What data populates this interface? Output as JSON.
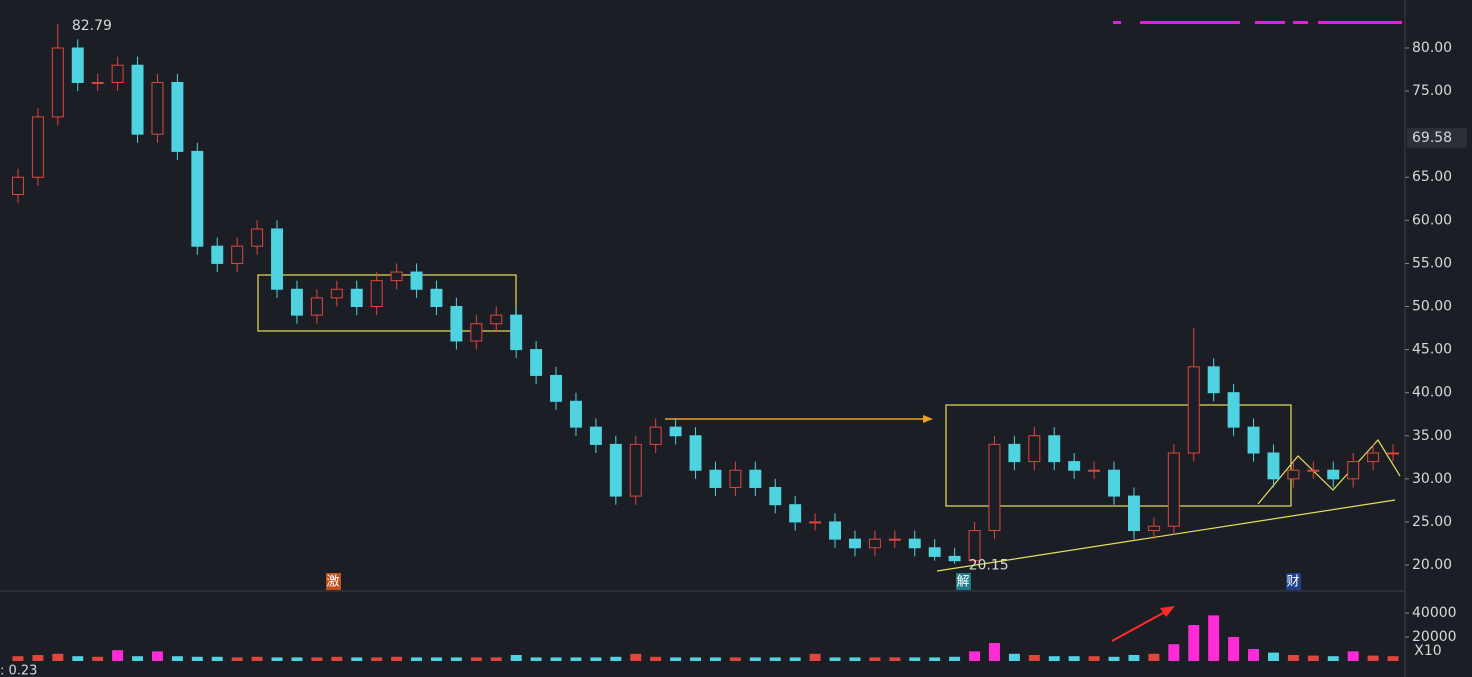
{
  "chart_data": {
    "type": "candlestick",
    "candles": {
      "open": [
        63,
        65,
        72,
        80,
        76,
        76,
        78,
        70,
        76,
        68,
        57,
        55,
        57,
        59,
        52,
        49,
        51,
        52,
        50,
        53,
        54,
        52,
        50,
        46,
        48,
        49,
        45,
        42,
        39,
        36,
        34,
        28,
        34,
        36,
        35,
        31,
        29,
        31,
        29,
        27,
        25,
        25,
        23,
        22,
        23,
        23,
        22,
        21,
        20.5,
        24,
        34,
        32,
        35,
        32,
        31,
        31,
        28,
        24,
        24.5,
        33,
        43,
        40,
        36,
        33,
        30,
        31,
        31,
        30,
        32,
        33
      ],
      "high": [
        66,
        73,
        82.79,
        81,
        77,
        79,
        79,
        77,
        77,
        69,
        58,
        58,
        60,
        60,
        53,
        52,
        53,
        53,
        54,
        55,
        55,
        53,
        51,
        49,
        50,
        50,
        46,
        43,
        40,
        37,
        35,
        35,
        37,
        37,
        36,
        32,
        32,
        32,
        30,
        28,
        26,
        26,
        24,
        24,
        24,
        24,
        23,
        22,
        25,
        35,
        35,
        36,
        36,
        33,
        32,
        32,
        29,
        25.5,
        34,
        47.5,
        44,
        41,
        37,
        34,
        32,
        32,
        32,
        33,
        34,
        34
      ],
      "low": [
        62,
        64,
        71,
        75,
        75,
        75,
        69,
        69,
        67,
        56,
        54,
        54,
        56,
        51,
        48,
        48,
        50,
        49,
        49,
        52,
        51,
        49,
        45,
        45,
        47,
        44,
        41,
        38,
        35,
        33,
        27,
        27,
        33,
        34,
        30,
        28,
        28,
        28,
        26,
        24,
        24,
        22,
        21,
        21,
        22,
        21,
        20.5,
        20.15,
        20.3,
        23,
        31,
        31,
        31,
        30,
        30,
        27,
        23,
        23,
        23.5,
        32,
        39,
        35,
        32,
        29,
        29,
        30,
        29,
        29,
        31,
        32
      ],
      "close": [
        65,
        72,
        80,
        76,
        76,
        78,
        70,
        76,
        68,
        57,
        55,
        57,
        59,
        52,
        49,
        51,
        52,
        50,
        53,
        54,
        52,
        50,
        46,
        48,
        49,
        45,
        42,
        39,
        36,
        34,
        28,
        34,
        36,
        35,
        31,
        29,
        31,
        29,
        27,
        25,
        25,
        23,
        22,
        23,
        23,
        22,
        21,
        20.5,
        24,
        34,
        32,
        35,
        32,
        31,
        31,
        28,
        24,
        24.5,
        33,
        43,
        40,
        36,
        33,
        30,
        31,
        31,
        30,
        32,
        33,
        33
      ],
      "volume": [
        4000,
        5000,
        6000,
        4000,
        3500,
        9000,
        4000,
        8000,
        4000,
        3500,
        3500,
        3000,
        3500,
        3000,
        3000,
        3000,
        3500,
        3000,
        3000,
        3500,
        3000,
        3000,
        3000,
        3000,
        3000,
        5000,
        3000,
        3000,
        3000,
        3000,
        3500,
        6000,
        3500,
        3000,
        3000,
        3000,
        3000,
        3000,
        3000,
        3000,
        6000,
        3000,
        3000,
        3000,
        3000,
        3000,
        3000,
        3500,
        8000,
        15000,
        6000,
        5000,
        4000,
        4000,
        4000,
        3500,
        5000,
        6000,
        14000,
        30000,
        38000,
        20000,
        10000,
        7000,
        5000,
        4500,
        4000,
        8000,
        4500,
        4000
      ]
    },
    "up_color": "#e0463c",
    "down_color": "#4fd3e0",
    "spike_color": "#ff2bd6",
    "ylim": [
      17.1,
      85.57
    ],
    "yticks": [
      {
        "value": 20,
        "label": "20.00"
      },
      {
        "value": 25,
        "label": "25.00"
      },
      {
        "value": 30,
        "label": "30.00"
      },
      {
        "value": 35,
        "label": "35.00"
      },
      {
        "value": 40,
        "label": "40.00"
      },
      {
        "value": 45,
        "label": "45.00"
      },
      {
        "value": 50,
        "label": "50.00"
      },
      {
        "value": 55,
        "label": "55.00"
      },
      {
        "value": 60,
        "label": "60.00"
      },
      {
        "value": 65,
        "label": "65.00"
      },
      {
        "value": 75,
        "label": "75.00"
      },
      {
        "value": 80,
        "label": "80.00"
      }
    ],
    "current_price": 69.58,
    "volume_ylim": [
      0,
      55000
    ],
    "volume_yticks": [
      40000,
      20000
    ],
    "volume_scale_label": "X10",
    "indicator_label": ": 0.23",
    "events": [
      "激",
      "解",
      "财"
    ]
  }
}
